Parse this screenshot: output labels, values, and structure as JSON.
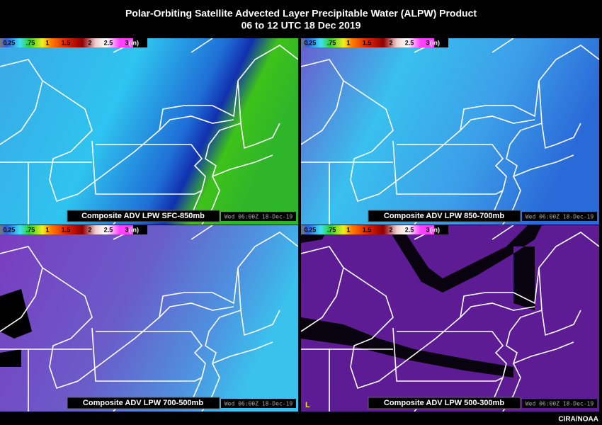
{
  "header": {
    "title": "Polar-Orbiting Satellite Advected Layer Precipitable Water (ALPW) Product",
    "subtitle": "06 to 12 UTC  18 Dec 2019"
  },
  "colorbar": {
    "labels": [
      "0",
      ".25",
      ".75",
      "1",
      "1.5",
      "2",
      "2.5",
      "3",
      "(in)"
    ]
  },
  "panels": [
    {
      "label": "Composite ADV LPW SFC-850mb",
      "timestamp": "Wed 06:00Z 18-Dec-19"
    },
    {
      "label": "Composite ADV LPW 850-700mb",
      "timestamp": "Wed 06:00Z 18-Dec-19"
    },
    {
      "label": "Composite ADV LPW 700-500mb",
      "timestamp": "Wed 06:00Z 18-Dec-19"
    },
    {
      "label": "Composite ADV LPW 500-300mb",
      "timestamp": "Wed 06:00Z 18-Dec-19",
      "marker": "L"
    }
  ],
  "credit": "CIRA/NOAA"
}
